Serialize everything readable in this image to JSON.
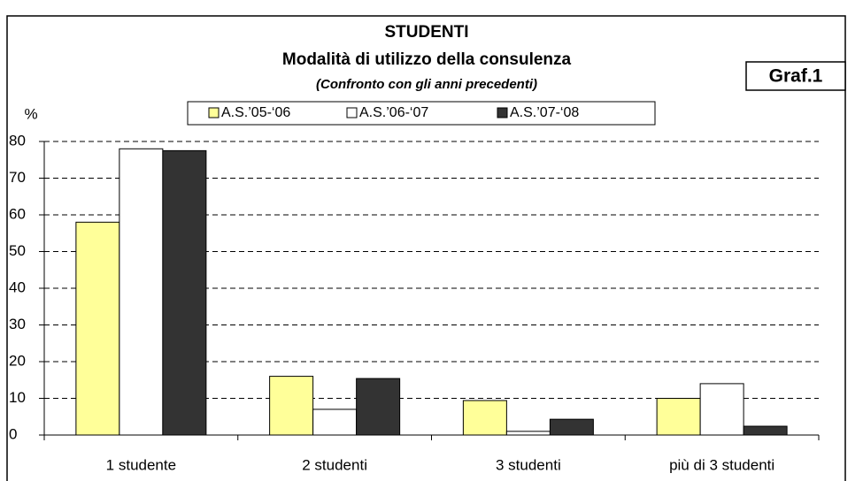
{
  "chart_data": {
    "type": "bar",
    "title": "STUDENTI",
    "subtitle": "Modalità di utilizzo della consulenza",
    "note": "(Confronto con gli anni precedenti)",
    "annotation": "Graf.1",
    "y_label": "%",
    "categories": [
      "1 studente",
      "2 studenti",
      "3 studenti",
      "più di 3 studenti"
    ],
    "series": [
      {
        "name": "A.S.’05-‘06",
        "color": "#ffff99",
        "values": [
          58,
          16,
          9.4,
          10
        ]
      },
      {
        "name": "A.S.’06-‘07",
        "color": "#ffffff",
        "values": [
          78,
          7,
          1,
          14
        ]
      },
      {
        "name": "A.S.’07-‘08",
        "color": "#333333",
        "values": [
          77.5,
          15.4,
          4.3,
          2.4
        ]
      }
    ],
    "ylim": [
      0,
      80
    ],
    "yticks": [
      0,
      10,
      20,
      30,
      40,
      50,
      60,
      70,
      80
    ],
    "grid": true
  }
}
